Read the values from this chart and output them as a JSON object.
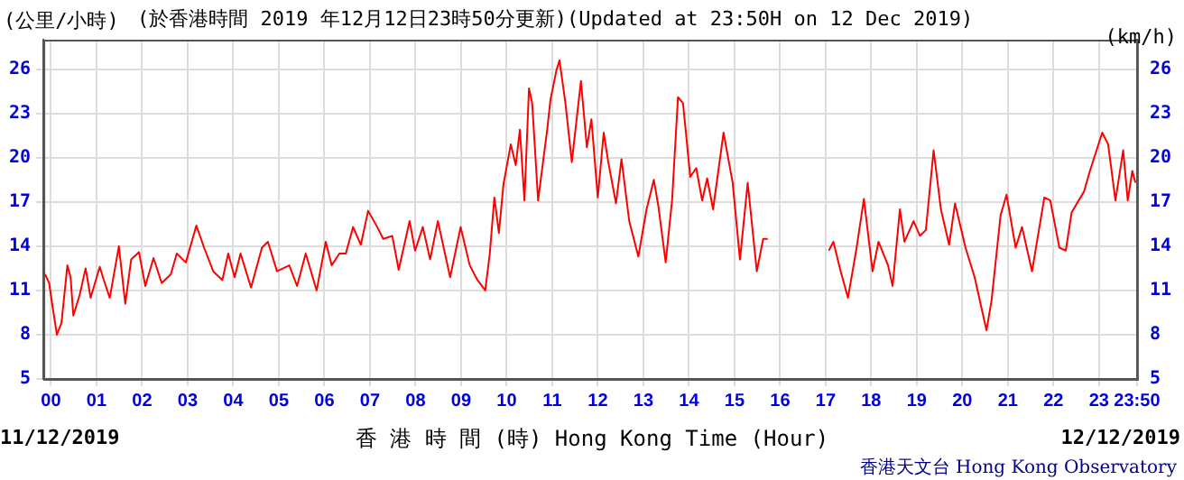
{
  "chart_data": {
    "type": "line",
    "title": "(於香港時間 2019 年12月12日23時50分更新)(Updated at 23:50H on 12 Dec 2019)",
    "xlabel": "香 港 時 間 (時) Hong Kong Time (Hour)",
    "ylabel": "(公里/小時)",
    "y2label": "(km/h)",
    "annotations": [
      "11/12/2019",
      "12/12/2019",
      "香港天文台 Hong Kong Observatory"
    ],
    "series": [
      {
        "color": "#ff0000",
        "x": [
          -0.13,
          -0.04,
          0.03,
          0.13,
          0.23,
          0.36,
          0.43,
          0.49,
          0.63,
          0.76,
          0.87,
          1.07,
          1.16,
          1.29,
          1.49,
          1.63,
          1.76,
          1.93,
          2.07,
          2.25,
          2.43,
          2.63,
          2.76,
          2.96,
          3.19,
          3.36,
          3.56,
          3.76,
          3.89,
          4.03,
          4.16,
          4.39,
          4.63,
          4.76,
          4.96,
          5.23,
          5.4,
          5.59,
          5.83,
          6.03,
          6.16,
          6.33,
          6.47,
          6.63,
          6.8,
          6.96,
          7.16,
          7.29,
          7.49,
          7.63,
          7.87,
          7.99,
          8.16,
          8.32,
          8.49,
          8.76,
          8.99,
          9.19,
          9.36,
          9.53,
          9.63,
          9.73,
          9.83,
          9.93,
          10.09,
          10.2,
          10.29,
          10.39,
          10.49,
          10.56,
          10.69,
          10.89,
          10.96,
          11.09,
          11.16,
          11.29,
          11.43,
          11.63,
          11.76,
          11.86,
          12,
          12.13,
          12.23,
          12.4,
          12.52,
          12.69,
          12.89,
          13.07,
          13.23,
          13.33,
          13.49,
          13.63,
          13.76,
          13.87,
          14.03,
          14.16,
          14.29,
          14.4,
          14.53,
          14.76,
          14.96,
          15.12,
          15.29,
          15.49,
          15.63,
          15.73,
          16.4,
          17.07,
          17.17,
          17.33,
          17.49,
          17.67,
          17.84,
          18.03,
          18.16,
          18.37,
          18.47,
          18.63,
          18.73,
          18.93,
          19.07,
          19.2,
          19.37,
          19.53,
          19.71,
          19.84,
          20.07,
          20.27,
          20.53,
          20.64,
          20.84,
          20.97,
          21.17,
          21.31,
          21.53,
          21.8,
          21.93,
          22.13,
          22.27,
          22.4,
          22.67,
          22.8,
          23.07,
          23.2,
          23.36,
          23.53,
          23.63,
          23.73,
          23.8
        ],
        "values": [
          12.1,
          11.5,
          10,
          8,
          8.8,
          12.7,
          11.9,
          9.3,
          10.7,
          12.5,
          10.5,
          12.6,
          11.7,
          10.5,
          14,
          10.1,
          13.1,
          13.6,
          11.3,
          13.2,
          11.5,
          12.1,
          13.5,
          12.9,
          15.4,
          13.9,
          12.3,
          11.7,
          13.5,
          11.9,
          13.5,
          11.2,
          13.9,
          14.3,
          12.3,
          12.7,
          11.3,
          13.5,
          11,
          14.3,
          12.7,
          13.5,
          13.5,
          15.3,
          14.1,
          16.4,
          15.3,
          14.5,
          14.7,
          12.4,
          15.7,
          13.7,
          15.3,
          13.1,
          15.7,
          11.9,
          15.3,
          12.7,
          11.7,
          11,
          13.5,
          17.3,
          14.9,
          18.2,
          20.9,
          19.5,
          21.9,
          17.1,
          24.7,
          23.7,
          17.1,
          21.9,
          23.9,
          25.9,
          26.6,
          23.7,
          19.7,
          25.2,
          20.7,
          22.6,
          17.3,
          21.7,
          19.7,
          16.9,
          19.9,
          15.7,
          13.3,
          16.5,
          18.5,
          16.7,
          12.9,
          17.1,
          24.1,
          23.7,
          18.7,
          19.3,
          17.1,
          18.6,
          16.5,
          21.7,
          18.3,
          13.1,
          18.3,
          12.3,
          14.5,
          14.5,
          null,
          13.7,
          14.3,
          12.3,
          10.5,
          13.7,
          17.2,
          12.3,
          14.3,
          12.7,
          11.3,
          16.5,
          14.3,
          15.7,
          14.7,
          15.1,
          20.5,
          16.5,
          14.1,
          16.9,
          13.9,
          11.9,
          8.3,
          10.3,
          16.1,
          17.5,
          13.9,
          15.3,
          12.3,
          17.3,
          17.1,
          13.9,
          13.7,
          16.3,
          17.7,
          19.1,
          21.7,
          20.9,
          17.1,
          20.5,
          17.1,
          19.1,
          18.3
        ]
      }
    ],
    "xlim": [
      -0.1667,
      23.8333
    ],
    "xticks": [
      {
        "value": 0,
        "label": "00"
      },
      {
        "value": 1,
        "label": "01"
      },
      {
        "value": 2,
        "label": "02"
      },
      {
        "value": 3,
        "label": "03"
      },
      {
        "value": 4,
        "label": "04"
      },
      {
        "value": 5,
        "label": "05"
      },
      {
        "value": 6,
        "label": "06"
      },
      {
        "value": 7,
        "label": "07"
      },
      {
        "value": 8,
        "label": "08"
      },
      {
        "value": 9,
        "label": "09"
      },
      10,
      11,
      12,
      13,
      14,
      15,
      16,
      17,
      18,
      19,
      20,
      21,
      22,
      23,
      {
        "value": 23.8333,
        "label": "23:50"
      }
    ],
    "ylim": [
      5,
      28
    ],
    "yticks": [
      5,
      8,
      11,
      14,
      17,
      20,
      23,
      26
    ],
    "y2lim": [
      5,
      28
    ],
    "y2ticks": [
      5,
      8,
      11,
      14,
      17,
      20,
      23,
      26
    ],
    "grid": true,
    "legend": false,
    "marker": "none",
    "line_style": "solid"
  }
}
